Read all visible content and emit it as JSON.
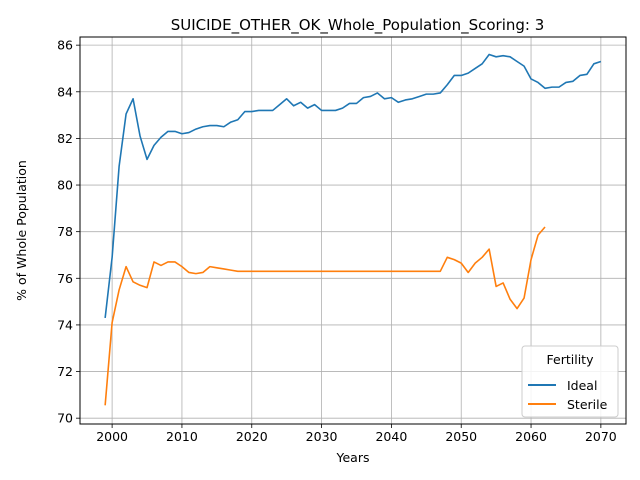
{
  "chart_data": {
    "type": "line",
    "title": "SUICIDE_OTHER_OK_Whole_Population_Scoring: 3",
    "xlabel": "Years",
    "ylabel": "% of Whole Population",
    "xlim": [
      1995.4,
      2073.6
    ],
    "ylim": [
      69.75,
      86.35
    ],
    "xticks": [
      2000,
      2010,
      2020,
      2030,
      2040,
      2050,
      2060,
      2070
    ],
    "yticks": [
      70,
      72,
      74,
      76,
      78,
      80,
      82,
      84,
      86
    ],
    "grid": true,
    "legend": {
      "title": "Fertility",
      "placement": "bottom-right"
    },
    "series": [
      {
        "name": "Ideal",
        "color": "#1f77b4",
        "x": [
          1999,
          2000,
          2001,
          2002,
          2003,
          2004,
          2005,
          2006,
          2007,
          2008,
          2009,
          2010,
          2011,
          2012,
          2013,
          2014,
          2015,
          2016,
          2017,
          2018,
          2019,
          2020,
          2021,
          2022,
          2023,
          2024,
          2025,
          2026,
          2027,
          2028,
          2029,
          2030,
          2031,
          2032,
          2033,
          2034,
          2035,
          2036,
          2037,
          2038,
          2039,
          2040,
          2041,
          2042,
          2043,
          2044,
          2045,
          2046,
          2047,
          2048,
          2049,
          2050,
          2051,
          2052,
          2053,
          2054,
          2055,
          2056,
          2057,
          2058,
          2059,
          2060,
          2061,
          2062,
          2063,
          2064,
          2065,
          2066,
          2067,
          2068,
          2069,
          2070
        ],
        "y": [
          74.3,
          76.9,
          80.8,
          83.05,
          83.7,
          82.1,
          81.1,
          81.7,
          82.05,
          82.3,
          82.3,
          82.2,
          82.25,
          82.4,
          82.5,
          82.55,
          82.55,
          82.5,
          82.7,
          82.8,
          83.15,
          83.15,
          83.2,
          83.2,
          83.2,
          83.45,
          83.7,
          83.4,
          83.55,
          83.3,
          83.45,
          83.2,
          83.2,
          83.2,
          83.3,
          83.5,
          83.5,
          83.75,
          83.8,
          83.95,
          83.7,
          83.75,
          83.55,
          83.65,
          83.7,
          83.8,
          83.9,
          83.9,
          83.95,
          84.3,
          84.7,
          84.7,
          84.8,
          85.0,
          85.2,
          85.6,
          85.5,
          85.55,
          85.5,
          85.3,
          85.1,
          84.55,
          84.4,
          84.15,
          84.2,
          84.2,
          84.4,
          84.45,
          84.7,
          84.75,
          85.2,
          85.3
        ]
      },
      {
        "name": "Sterile",
        "color": "#ff7f0e",
        "x": [
          1999,
          2000,
          2001,
          2002,
          2003,
          2004,
          2005,
          2006,
          2007,
          2008,
          2009,
          2010,
          2011,
          2012,
          2013,
          2014,
          2015,
          2016,
          2017,
          2018,
          2019,
          2020,
          2021,
          2022,
          2023,
          2024,
          2025,
          2026,
          2027,
          2028,
          2029,
          2030,
          2031,
          2032,
          2033,
          2034,
          2035,
          2036,
          2037,
          2038,
          2039,
          2040,
          2041,
          2042,
          2043,
          2044,
          2045,
          2046,
          2047,
          2048,
          2049,
          2050,
          2051,
          2052,
          2053,
          2054,
          2055,
          2056,
          2057,
          2058,
          2059,
          2060,
          2061,
          2062
        ],
        "y": [
          70.55,
          74.1,
          75.5,
          76.5,
          75.85,
          75.7,
          75.6,
          76.7,
          76.55,
          76.7,
          76.7,
          76.5,
          76.25,
          76.2,
          76.25,
          76.5,
          76.45,
          76.4,
          76.35,
          76.3,
          76.3,
          76.3,
          76.3,
          76.3,
          76.3,
          76.3,
          76.3,
          76.3,
          76.3,
          76.3,
          76.3,
          76.3,
          76.3,
          76.3,
          76.3,
          76.3,
          76.3,
          76.3,
          76.3,
          76.3,
          76.3,
          76.3,
          76.3,
          76.3,
          76.3,
          76.3,
          76.3,
          76.3,
          76.3,
          76.9,
          76.8,
          76.65,
          76.25,
          76.65,
          76.9,
          77.25,
          75.65,
          75.8,
          75.1,
          74.7,
          75.15,
          76.8,
          77.85,
          78.2
        ]
      }
    ]
  }
}
